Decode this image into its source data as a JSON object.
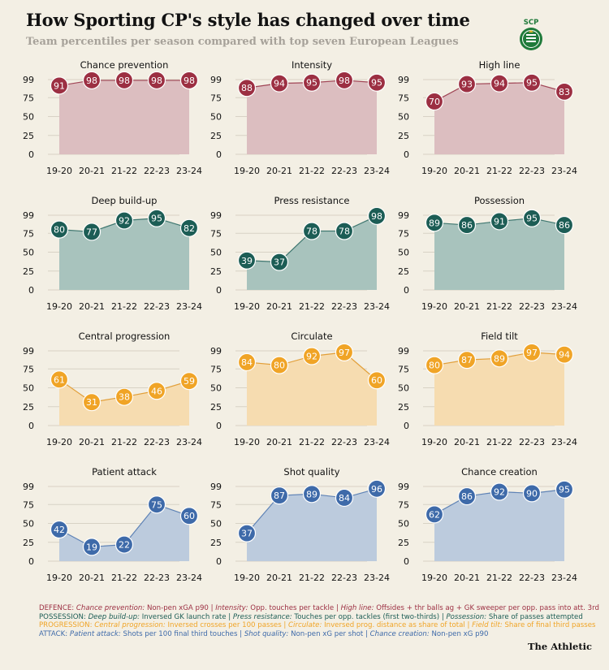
{
  "title": "How Sporting CP's style has changed over time",
  "subtitle": "Team percentiles per season compared with top seven European Leagues",
  "logo_text": "SCP",
  "brand": "The Athletic",
  "colors": {
    "defence": {
      "line": "#a04455",
      "fill": "#dcbec0",
      "point": "#9c2f42"
    },
    "possession": {
      "line": "#3f7770",
      "fill": "#a8c3bd",
      "point": "#1c5d55"
    },
    "progression": {
      "line": "#e29f39",
      "fill": "#f6dcb0",
      "point": "#f0a426"
    },
    "attack": {
      "line": "#5f83b6",
      "fill": "#bccbdd",
      "point": "#3e6aa9"
    }
  },
  "chart_data": [
    {
      "type": "area",
      "group": "defence",
      "title": "Chance prevention",
      "categories": [
        "19-20",
        "20-21",
        "21-22",
        "22-23",
        "23-24"
      ],
      "values": [
        91,
        98,
        98,
        98,
        98
      ],
      "yticks": [
        0,
        25,
        50,
        75,
        99
      ],
      "ylim": [
        0,
        99
      ]
    },
    {
      "type": "area",
      "group": "defence",
      "title": "Intensity",
      "categories": [
        "19-20",
        "20-21",
        "21-22",
        "22-23",
        "23-24"
      ],
      "values": [
        88,
        94,
        95,
        98,
        95
      ],
      "yticks": [
        0,
        25,
        50,
        75,
        99
      ],
      "ylim": [
        0,
        99
      ]
    },
    {
      "type": "area",
      "group": "defence",
      "title": "High line",
      "categories": [
        "19-20",
        "20-21",
        "21-22",
        "22-23",
        "23-24"
      ],
      "values": [
        70,
        93,
        94,
        95,
        83
      ],
      "yticks": [
        0,
        25,
        50,
        75,
        99
      ],
      "ylim": [
        0,
        99
      ]
    },
    {
      "type": "area",
      "group": "possession",
      "title": "Deep build-up",
      "categories": [
        "19-20",
        "20-21",
        "21-22",
        "22-23",
        "23-24"
      ],
      "values": [
        80,
        77,
        92,
        95,
        82
      ],
      "yticks": [
        0,
        25,
        50,
        75,
        99
      ],
      "ylim": [
        0,
        99
      ]
    },
    {
      "type": "area",
      "group": "possession",
      "title": "Press resistance",
      "categories": [
        "19-20",
        "20-21",
        "21-22",
        "22-23",
        "23-24"
      ],
      "values": [
        39,
        37,
        78,
        78,
        98
      ],
      "yticks": [
        0,
        25,
        50,
        75,
        99
      ],
      "ylim": [
        0,
        99
      ]
    },
    {
      "type": "area",
      "group": "possession",
      "title": "Possession",
      "categories": [
        "19-20",
        "20-21",
        "21-22",
        "22-23",
        "23-24"
      ],
      "values": [
        89,
        86,
        91,
        95,
        86
      ],
      "yticks": [
        0,
        25,
        50,
        75,
        99
      ],
      "ylim": [
        0,
        99
      ]
    },
    {
      "type": "area",
      "group": "progression",
      "title": "Central progression",
      "categories": [
        "19-20",
        "20-21",
        "21-22",
        "22-23",
        "23-24"
      ],
      "values": [
        61,
        31,
        38,
        46,
        59
      ],
      "yticks": [
        0,
        25,
        50,
        75,
        99
      ],
      "ylim": [
        0,
        99
      ]
    },
    {
      "type": "area",
      "group": "progression",
      "title": "Circulate",
      "categories": [
        "19-20",
        "20-21",
        "21-22",
        "22-23",
        "23-24"
      ],
      "values": [
        84,
        80,
        92,
        97,
        60
      ],
      "yticks": [
        0,
        25,
        50,
        75,
        99
      ],
      "ylim": [
        0,
        99
      ]
    },
    {
      "type": "area",
      "group": "progression",
      "title": "Field tilt",
      "categories": [
        "19-20",
        "20-21",
        "21-22",
        "22-23",
        "23-24"
      ],
      "values": [
        80,
        87,
        89,
        97,
        94
      ],
      "yticks": [
        0,
        25,
        50,
        75,
        99
      ],
      "ylim": [
        0,
        99
      ]
    },
    {
      "type": "area",
      "group": "attack",
      "title": "Patient attack",
      "categories": [
        "19-20",
        "20-21",
        "21-22",
        "22-23",
        "23-24"
      ],
      "values": [
        42,
        19,
        22,
        75,
        60
      ],
      "yticks": [
        0,
        25,
        50,
        75,
        99
      ],
      "ylim": [
        0,
        99
      ]
    },
    {
      "type": "area",
      "group": "attack",
      "title": "Shot quality",
      "categories": [
        "19-20",
        "20-21",
        "21-22",
        "22-23",
        "23-24"
      ],
      "values": [
        37,
        87,
        89,
        84,
        96
      ],
      "yticks": [
        0,
        25,
        50,
        75,
        99
      ],
      "ylim": [
        0,
        99
      ]
    },
    {
      "type": "area",
      "group": "attack",
      "title": "Chance creation",
      "categories": [
        "19-20",
        "20-21",
        "21-22",
        "22-23",
        "23-24"
      ],
      "values": [
        62,
        86,
        92,
        90,
        95
      ],
      "yticks": [
        0,
        25,
        50,
        75,
        99
      ],
      "ylim": [
        0,
        99
      ]
    }
  ],
  "legend": [
    {
      "group": "defence",
      "label": "DEFENCE:",
      "items": [
        {
          "term": "Chance prevention:",
          "desc": " Non-pen xGA p90"
        },
        {
          "term": "Intensity:",
          "desc": " Opp. touches per tackle"
        },
        {
          "term": "High line:",
          "desc": " Offsides + thr balls ag + GK sweeper per opp. pass into att. 3rd"
        }
      ]
    },
    {
      "group": "possession",
      "label": "POSSESSION:",
      "items": [
        {
          "term": "Deep build-up:",
          "desc": " Inversed GK launch rate"
        },
        {
          "term": "Press resistance:",
          "desc": " Touches per opp. tackles (first two-thirds)"
        },
        {
          "term": "Possession:",
          "desc": " Share of passes attempted"
        }
      ]
    },
    {
      "group": "progression",
      "label": "PROGRESSION:",
      "items": [
        {
          "term": "Central progression:",
          "desc": " Inversed crosses per 100 passes"
        },
        {
          "term": "Circulate:",
          "desc": " Inversed prog. distance as share of total"
        },
        {
          "term": "Field tilt:",
          "desc": " Share of final third passes"
        }
      ]
    },
    {
      "group": "attack",
      "label": "ATTACK:",
      "items": [
        {
          "term": "Patient attack:",
          "desc": " Shots per 100 final third touches"
        },
        {
          "term": "Shot quality:",
          "desc": " Non-pen xG per shot"
        },
        {
          "term": "Chance creation:",
          "desc": " Non-pen xG p90"
        }
      ]
    }
  ]
}
